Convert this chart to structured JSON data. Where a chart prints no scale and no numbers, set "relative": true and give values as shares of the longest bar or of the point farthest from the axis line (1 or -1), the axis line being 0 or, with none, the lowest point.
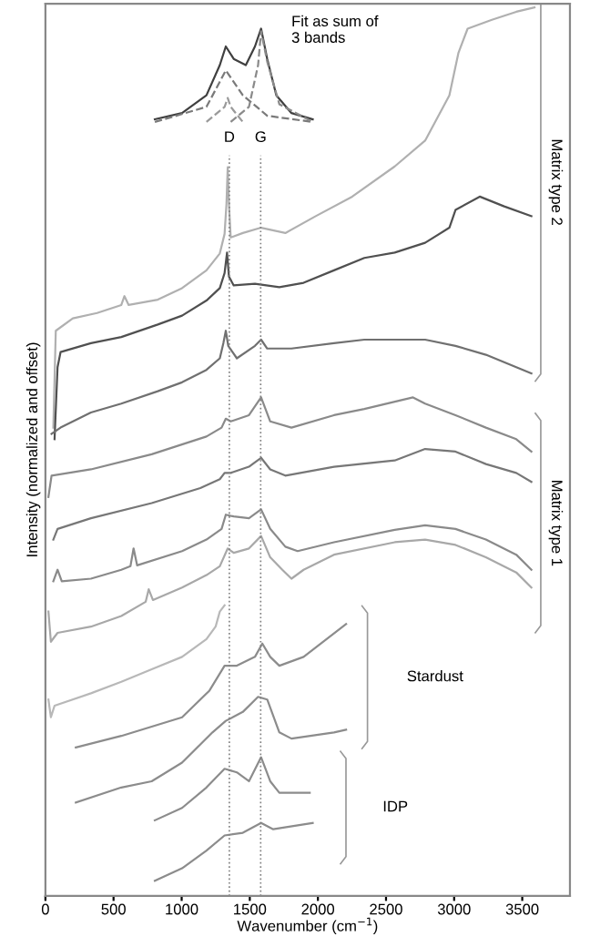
{
  "chart_data": {
    "type": "line",
    "relative": true,
    "xlabel": "Wavenumber (cm$^{−1}$)",
    "ylabel": "Intensity (normalized and offset)",
    "xlim": [
      0,
      3850
    ],
    "xticks": [
      0,
      500,
      1000,
      1500,
      2000,
      2500,
      3000,
      3500
    ],
    "grid": false,
    "legend": false,
    "line_style": "solid",
    "marker": "none",
    "series": [
      {
        "color": "#b0b0b0",
        "x": [
          58,
          76,
          201,
          379,
          557,
          580,
          611,
          825,
          1003,
          1182,
          1280,
          1315,
          1329,
          1338,
          1347,
          1360,
          1449,
          1583,
          1761,
          1984,
          2252,
          2564,
          2787,
          2965,
          3032,
          3099,
          3277,
          3456,
          3590
        ],
        "values": [
          0.527,
          0.636,
          0.65,
          0.656,
          0.665,
          0.675,
          0.665,
          0.671,
          0.684,
          0.704,
          0.723,
          0.745,
          0.779,
          0.82,
          0.779,
          0.741,
          0.746,
          0.752,
          0.746,
          0.765,
          0.787,
          0.821,
          0.85,
          0.901,
          0.949,
          0.976,
          0.986,
          0.995,
          1.0
        ]
      },
      {
        "color": "#505050",
        "x": [
          67,
          89,
          111,
          334,
          557,
          825,
          1003,
          1182,
          1280,
          1315,
          1333,
          1347,
          1382,
          1538,
          1717,
          1895,
          2118,
          2341,
          2564,
          2787,
          2965,
          3010,
          3188,
          3367,
          3567
        ],
        "values": [
          0.514,
          0.595,
          0.612,
          0.622,
          0.629,
          0.643,
          0.653,
          0.67,
          0.684,
          0.701,
          0.724,
          0.697,
          0.687,
          0.689,
          0.685,
          0.69,
          0.704,
          0.718,
          0.724,
          0.735,
          0.752,
          0.772,
          0.787,
          0.776,
          0.765
        ]
      },
      {
        "color": "#707070",
        "x": [
          45,
          111,
          334,
          557,
          825,
          1003,
          1182,
          1280,
          1306,
          1324,
          1342,
          1405,
          1538,
          1583,
          1628,
          1806,
          2118,
          2341,
          2564,
          2787,
          3010,
          3233,
          3456,
          3567
        ],
        "values": [
          0.52,
          0.527,
          0.544,
          0.554,
          0.568,
          0.578,
          0.592,
          0.605,
          0.622,
          0.636,
          0.619,
          0.605,
          0.619,
          0.626,
          0.616,
          0.616,
          0.622,
          0.626,
          0.626,
          0.626,
          0.619,
          0.609,
          0.595,
          0.588
        ]
      },
      {
        "color": "#8a8a8a",
        "x": [
          22,
          45,
          334,
          780,
          1182,
          1293,
          1324,
          1360,
          1494,
          1583,
          1650,
          1806,
          2118,
          2341,
          2698,
          2787,
          3010,
          3233,
          3456,
          3567
        ],
        "values": [
          0.449,
          0.473,
          0.48,
          0.497,
          0.517,
          0.527,
          0.537,
          0.534,
          0.541,
          0.561,
          0.534,
          0.527,
          0.541,
          0.548,
          0.561,
          0.554,
          0.541,
          0.527,
          0.514,
          0.5
        ]
      },
      {
        "color": "#777777",
        "x": [
          58,
          89,
          334,
          780,
          1137,
          1280,
          1315,
          1360,
          1494,
          1583,
          1650,
          1761,
          2118,
          2564,
          2787,
          3010,
          3233,
          3456,
          3567
        ],
        "values": [
          0.401,
          0.413,
          0.425,
          0.442,
          0.459,
          0.469,
          0.476,
          0.476,
          0.483,
          0.493,
          0.48,
          0.473,
          0.483,
          0.49,
          0.503,
          0.5,
          0.486,
          0.476,
          0.466
        ]
      },
      {
        "color": "#8a8a8a",
        "x": [
          58,
          89,
          120,
          334,
          557,
          624,
          647,
          673,
          1003,
          1182,
          1293,
          1324,
          1382,
          1494,
          1583,
          1650,
          1761,
          1851,
          2118,
          2564,
          2787,
          3010,
          3233,
          3456,
          3567
        ],
        "values": [
          0.354,
          0.367,
          0.354,
          0.357,
          0.367,
          0.371,
          0.391,
          0.372,
          0.388,
          0.401,
          0.413,
          0.429,
          0.427,
          0.425,
          0.435,
          0.413,
          0.393,
          0.388,
          0.398,
          0.412,
          0.417,
          0.413,
          0.401,
          0.384,
          0.367
        ]
      },
      {
        "color": "#a8a8a8",
        "x": [
          22,
          40,
          89,
          334,
          557,
          736,
          758,
          789,
          1003,
          1182,
          1280,
          1338,
          1382,
          1494,
          1583,
          1650,
          1739,
          1806,
          1895,
          2118,
          2564,
          2787,
          3010,
          3233,
          3456,
          3567
        ],
        "values": [
          0.32,
          0.286,
          0.296,
          0.303,
          0.315,
          0.331,
          0.345,
          0.333,
          0.347,
          0.361,
          0.371,
          0.391,
          0.386,
          0.391,
          0.405,
          0.381,
          0.367,
          0.357,
          0.367,
          0.384,
          0.398,
          0.401,
          0.395,
          0.381,
          0.364,
          0.347
        ]
      },
      {
        "color": "#b8b8b8",
        "x": [
          22,
          40,
          67,
          334,
          557,
          780,
          1003,
          1182,
          1249,
          1280,
          1315
        ],
        "values": [
          0.221,
          0.201,
          0.214,
          0.228,
          0.241,
          0.255,
          0.269,
          0.289,
          0.303,
          0.32,
          0.327
        ]
      },
      {
        "color": "#8c8c8c",
        "x": [
          223,
          557,
          1003,
          1204,
          1315,
          1405,
          1538,
          1592,
          1650,
          1717,
          1895,
          2207
        ],
        "values": [
          0.167,
          0.18,
          0.201,
          0.231,
          0.259,
          0.259,
          0.269,
          0.284,
          0.269,
          0.259,
          0.269,
          0.306
        ]
      },
      {
        "color": "#8c8c8c",
        "x": [
          223,
          557,
          780,
          1003,
          1226,
          1324,
          1449,
          1561,
          1628,
          1717,
          1806,
          2118,
          2207
        ],
        "values": [
          0.105,
          0.122,
          0.129,
          0.15,
          0.184,
          0.197,
          0.207,
          0.224,
          0.221,
          0.184,
          0.177,
          0.184,
          0.187
        ]
      },
      {
        "color": "#8c8c8c",
        "x": [
          803,
          1003,
          1182,
          1315,
          1405,
          1494,
          1583,
          1650,
          1717,
          1940
        ],
        "values": [
          0.085,
          0.099,
          0.122,
          0.143,
          0.139,
          0.129,
          0.156,
          0.129,
          0.116,
          0.116
        ]
      },
      {
        "color": "#8c8c8c",
        "x": [
          803,
          1003,
          1182,
          1315,
          1449,
          1583,
          1672,
          1962
        ],
        "values": [
          0.017,
          0.031,
          0.051,
          0.068,
          0.071,
          0.082,
          0.075,
          0.082
        ]
      },
      {
        "color": "#404040",
        "x": [
          803,
          1003,
          1182,
          1280,
          1324,
          1382,
          1471,
          1538,
          1583,
          1628,
          1695,
          1806,
          1962
        ],
        "values": [
          0.874,
          0.881,
          0.901,
          0.935,
          0.956,
          0.942,
          0.935,
          0.956,
          0.976,
          0.942,
          0.901,
          0.881,
          0.874
        ]
      },
      {
        "color": "#7a7a7a",
        "line_style": "dashed",
        "x": [
          803,
          1182,
          1324,
          1449,
          1628,
          1962
        ],
        "values": [
          0.871,
          0.888,
          0.929,
          0.901,
          0.878,
          0.871
        ]
      },
      {
        "color": "#9a9a9a",
        "line_style": "dashed",
        "x": [
          1182,
          1315,
          1338,
          1360,
          1449
        ],
        "values": [
          0.871,
          0.888,
          0.898,
          0.888,
          0.871
        ]
      },
      {
        "color": "#8a8a8a",
        "line_style": "dashed",
        "x": [
          1360,
          1494,
          1561,
          1583,
          1628,
          1717,
          1962
        ],
        "values": [
          0.871,
          0.888,
          0.935,
          0.973,
          0.939,
          0.891,
          0.871
        ]
      }
    ],
    "ref_lines": [
      {
        "axis": "x",
        "value": 1350,
        "label": "D",
        "color": "#808080",
        "line_style": "dotted"
      },
      {
        "axis": "x",
        "value": 1580,
        "label": "G",
        "color": "#808080",
        "line_style": "dotted"
      }
    ],
    "annotations": [
      "Fit as sum of\n3 bands",
      "Matrix type 2",
      "Matrix type 1",
      "Stardust",
      "IDP"
    ]
  }
}
